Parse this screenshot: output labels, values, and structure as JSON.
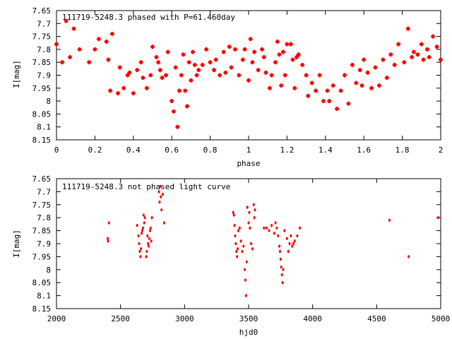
{
  "chart_data": [
    {
      "type": "scatter",
      "title": "111719-5248.3 phased with P=61.460day",
      "xlabel": "phase",
      "ylabel": "I[mag]",
      "xlim": [
        0,
        2
      ],
      "ylim": [
        8.15,
        7.65
      ],
      "y_inverted": true,
      "x_ticks": [
        "0",
        "0.2",
        "0.4",
        "0.6",
        "0.8",
        "1",
        "1.2",
        "1.4",
        "1.6",
        "1.8",
        "2"
      ],
      "y_ticks": [
        "7.65",
        "7.7",
        "7.75",
        "7.8",
        "7.85",
        "7.9",
        "7.95",
        "8",
        "8.05",
        "8.1",
        "8.15"
      ],
      "marker": "star",
      "color": "#ff0000",
      "points": [
        [
          0.0,
          7.78
        ],
        [
          0.03,
          7.85
        ],
        [
          0.05,
          7.69
        ],
        [
          0.07,
          7.83
        ],
        [
          0.09,
          7.72
        ],
        [
          0.12,
          7.8
        ],
        [
          0.17,
          7.85
        ],
        [
          0.2,
          7.8
        ],
        [
          0.22,
          7.76
        ],
        [
          0.26,
          7.77
        ],
        [
          0.27,
          7.84
        ],
        [
          0.28,
          7.96
        ],
        [
          0.29,
          7.74
        ],
        [
          0.32,
          7.97
        ],
        [
          0.33,
          7.87
        ],
        [
          0.35,
          7.95
        ],
        [
          0.37,
          7.9
        ],
        [
          0.38,
          7.89
        ],
        [
          0.4,
          7.97
        ],
        [
          0.42,
          7.88
        ],
        [
          0.44,
          7.85
        ],
        [
          0.45,
          7.91
        ],
        [
          0.47,
          7.95
        ],
        [
          0.49,
          7.9
        ],
        [
          0.5,
          7.79
        ],
        [
          0.52,
          7.83
        ],
        [
          0.53,
          7.85
        ],
        [
          0.54,
          7.88
        ],
        [
          0.55,
          7.91
        ],
        [
          0.57,
          7.9
        ],
        [
          0.58,
          7.81
        ],
        [
          0.6,
          8.0
        ],
        [
          0.61,
          8.04
        ],
        [
          0.62,
          7.87
        ],
        [
          0.63,
          8.1
        ],
        [
          0.64,
          7.96
        ],
        [
          0.65,
          7.9
        ],
        [
          0.66,
          7.82
        ],
        [
          0.67,
          7.96
        ],
        [
          0.68,
          8.02
        ],
        [
          0.69,
          7.85
        ],
        [
          0.7,
          7.92
        ],
        [
          0.71,
          7.81
        ],
        [
          0.72,
          7.86
        ],
        [
          0.73,
          7.9
        ],
        [
          0.74,
          7.88
        ],
        [
          0.76,
          7.86
        ],
        [
          0.78,
          7.8
        ],
        [
          0.8,
          7.85
        ],
        [
          0.82,
          7.88
        ],
        [
          0.83,
          7.84
        ],
        [
          0.85,
          7.9
        ],
        [
          0.87,
          7.81
        ],
        [
          0.88,
          7.89
        ],
        [
          0.9,
          7.79
        ],
        [
          0.91,
          7.87
        ],
        [
          0.93,
          7.8
        ],
        [
          0.95,
          7.9
        ],
        [
          0.97,
          7.84
        ],
        [
          0.98,
          7.8
        ],
        [
          1.0,
          7.92
        ],
        [
          1.01,
          7.76
        ],
        [
          1.02,
          7.85
        ],
        [
          1.03,
          7.81
        ],
        [
          1.05,
          7.88
        ],
        [
          1.07,
          7.8
        ],
        [
          1.08,
          7.83
        ],
        [
          1.09,
          7.89
        ],
        [
          1.11,
          7.95
        ],
        [
          1.12,
          7.9
        ],
        [
          1.14,
          7.85
        ],
        [
          1.15,
          7.77
        ],
        [
          1.16,
          7.82
        ],
        [
          1.17,
          7.94
        ],
        [
          1.18,
          7.81
        ],
        [
          1.19,
          7.9
        ],
        [
          1.2,
          7.78
        ],
        [
          1.22,
          7.78
        ],
        [
          1.23,
          7.84
        ],
        [
          1.24,
          7.95
        ],
        [
          1.25,
          7.83
        ],
        [
          1.26,
          7.82
        ],
        [
          1.28,
          7.86
        ],
        [
          1.3,
          7.9
        ],
        [
          1.31,
          7.98
        ],
        [
          1.33,
          7.93
        ],
        [
          1.35,
          7.96
        ],
        [
          1.37,
          7.9
        ],
        [
          1.39,
          8.0
        ],
        [
          1.41,
          7.96
        ],
        [
          1.42,
          8.0
        ],
        [
          1.44,
          7.94
        ],
        [
          1.46,
          8.03
        ],
        [
          1.48,
          7.96
        ],
        [
          1.5,
          7.9
        ],
        [
          1.52,
          8.01
        ],
        [
          1.54,
          7.86
        ],
        [
          1.56,
          7.93
        ],
        [
          1.58,
          7.88
        ],
        [
          1.59,
          7.94
        ],
        [
          1.6,
          7.84
        ],
        [
          1.62,
          7.89
        ],
        [
          1.64,
          7.95
        ],
        [
          1.66,
          7.87
        ],
        [
          1.68,
          7.94
        ],
        [
          1.7,
          7.84
        ],
        [
          1.72,
          7.91
        ],
        [
          1.74,
          7.82
        ],
        [
          1.76,
          7.86
        ],
        [
          1.78,
          7.78
        ],
        [
          1.81,
          7.85
        ],
        [
          1.83,
          7.72
        ],
        [
          1.85,
          7.83
        ],
        [
          1.86,
          7.81
        ],
        [
          1.88,
          7.82
        ],
        [
          1.9,
          7.78
        ],
        [
          1.91,
          7.84
        ],
        [
          1.93,
          7.8
        ],
        [
          1.94,
          7.83
        ],
        [
          1.96,
          7.75
        ],
        [
          1.98,
          7.79
        ],
        [
          2.0,
          7.84
        ]
      ]
    },
    {
      "type": "scatter",
      "title": "111719-5248.3 not phased light curve",
      "xlabel": "hjd0",
      "ylabel": "I[mag]",
      "xlim": [
        2000,
        5000
      ],
      "ylim": [
        8.15,
        7.65
      ],
      "y_inverted": true,
      "x_ticks": [
        "2000",
        "2500",
        "3000",
        "3500",
        "4000",
        "4500",
        "5000"
      ],
      "y_ticks": [
        "7.65",
        "7.7",
        "7.75",
        "7.8",
        "7.85",
        "7.9",
        "7.95",
        "8",
        "8.05",
        "8.1",
        "8.15"
      ],
      "marker": "dot",
      "color": "#ff0000",
      "points": [
        [
          2400,
          7.88
        ],
        [
          2402,
          7.89
        ],
        [
          2410,
          7.82
        ],
        [
          2630,
          7.83
        ],
        [
          2640,
          7.87
        ],
        [
          2645,
          7.9
        ],
        [
          2650,
          7.93
        ],
        [
          2655,
          7.95
        ],
        [
          2660,
          7.92
        ],
        [
          2665,
          7.86
        ],
        [
          2670,
          7.85
        ],
        [
          2675,
          7.84
        ],
        [
          2680,
          7.79
        ],
        [
          2685,
          7.82
        ],
        [
          2690,
          7.8
        ],
        [
          2700,
          7.95
        ],
        [
          2705,
          7.93
        ],
        [
          2710,
          7.87
        ],
        [
          2715,
          7.9
        ],
        [
          2720,
          7.91
        ],
        [
          2725,
          7.88
        ],
        [
          2730,
          7.85
        ],
        [
          2735,
          7.84
        ],
        [
          2740,
          7.89
        ],
        [
          2745,
          7.8
        ],
        [
          2800,
          7.7
        ],
        [
          2805,
          7.74
        ],
        [
          2810,
          7.68
        ],
        [
          2815,
          7.72
        ],
        [
          2820,
          7.77
        ],
        [
          2830,
          7.71
        ],
        [
          2840,
          7.82
        ],
        [
          3380,
          7.78
        ],
        [
          3385,
          7.79
        ],
        [
          3390,
          7.83
        ],
        [
          3395,
          7.87
        ],
        [
          3400,
          7.9
        ],
        [
          3405,
          7.93
        ],
        [
          3410,
          7.95
        ],
        [
          3415,
          7.92
        ],
        [
          3420,
          7.85
        ],
        [
          3430,
          7.84
        ],
        [
          3440,
          7.89
        ],
        [
          3450,
          7.93
        ],
        [
          3460,
          7.91
        ],
        [
          3470,
          8.0
        ],
        [
          3475,
          8.04
        ],
        [
          3480,
          8.1
        ],
        [
          3485,
          7.97
        ],
        [
          3490,
          7.76
        ],
        [
          3500,
          7.82
        ],
        [
          3505,
          7.78
        ],
        [
          3510,
          7.84
        ],
        [
          3520,
          7.9
        ],
        [
          3530,
          7.92
        ],
        [
          3540,
          7.75
        ],
        [
          3545,
          7.8
        ],
        [
          3550,
          7.77
        ],
        [
          3620,
          7.84
        ],
        [
          3640,
          7.84
        ],
        [
          3660,
          7.85
        ],
        [
          3680,
          7.83
        ],
        [
          3700,
          7.86
        ],
        [
          3710,
          7.82
        ],
        [
          3720,
          7.84
        ],
        [
          3730,
          7.87
        ],
        [
          3740,
          7.91
        ],
        [
          3745,
          7.93
        ],
        [
          3750,
          7.96
        ],
        [
          3755,
          7.99
        ],
        [
          3760,
          8.02
        ],
        [
          3765,
          8.05
        ],
        [
          3770,
          8.0
        ],
        [
          3780,
          7.85
        ],
        [
          3800,
          7.88
        ],
        [
          3810,
          7.93
        ],
        [
          3820,
          7.9
        ],
        [
          3830,
          7.87
        ],
        [
          3840,
          7.91
        ],
        [
          3850,
          7.9
        ],
        [
          3860,
          7.89
        ],
        [
          3880,
          7.87
        ],
        [
          3900,
          7.84
        ],
        [
          4600,
          7.81
        ],
        [
          4750,
          7.95
        ],
        [
          4980,
          7.8
        ]
      ]
    }
  ]
}
